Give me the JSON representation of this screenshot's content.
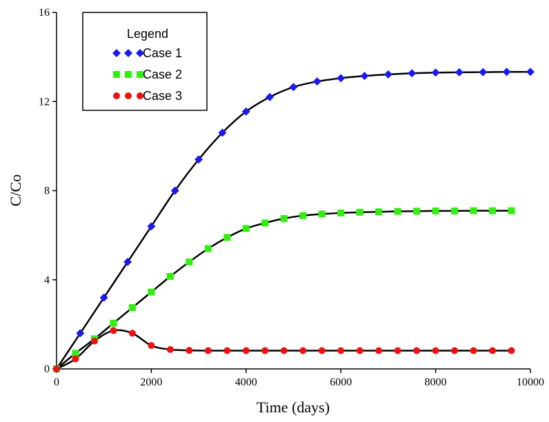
{
  "chart_data": {
    "type": "line",
    "xlabel": "Time (days)",
    "ylabel": "C/Co",
    "xlim": [
      0,
      10000
    ],
    "ylim": [
      0,
      16
    ],
    "xticks": [
      0,
      2000,
      4000,
      6000,
      8000,
      10000
    ],
    "yticks": [
      0,
      4,
      8,
      12,
      16
    ],
    "line_color": "#000000",
    "legend_title": "Legend",
    "legend_position": "upper-left",
    "series": [
      {
        "name": "Case 1",
        "color": "#1a1aee",
        "marker": "diamond",
        "x": [
          0,
          500,
          1000,
          1500,
          2000,
          2500,
          3000,
          3500,
          4000,
          4500,
          5000,
          5500,
          6000,
          6500,
          7000,
          7500,
          8000,
          8500,
          9000,
          9500,
          10000
        ],
        "values": [
          0,
          1.6,
          3.2,
          4.8,
          6.4,
          8.0,
          9.4,
          10.6,
          11.55,
          12.2,
          12.65,
          12.9,
          13.05,
          13.15,
          13.22,
          13.27,
          13.3,
          13.31,
          13.32,
          13.33,
          13.33
        ]
      },
      {
        "name": "Case 2",
        "color": "#33ee11",
        "marker": "square",
        "x": [
          0,
          400,
          800,
          1200,
          1600,
          2000,
          2400,
          2800,
          3200,
          3600,
          4000,
          4400,
          4800,
          5200,
          5600,
          6000,
          6400,
          6800,
          7200,
          7600,
          8000,
          8400,
          8800,
          9200,
          9600
        ],
        "values": [
          0,
          0.7,
          1.35,
          2.05,
          2.75,
          3.45,
          4.15,
          4.8,
          5.4,
          5.9,
          6.3,
          6.55,
          6.75,
          6.88,
          6.95,
          7.0,
          7.03,
          7.05,
          7.07,
          7.08,
          7.09,
          7.09,
          7.1,
          7.1,
          7.1
        ]
      },
      {
        "name": "Case 3",
        "color": "#ee1111",
        "marker": "circle",
        "x": [
          0,
          400,
          800,
          1200,
          1600,
          2000,
          2400,
          2800,
          3200,
          3600,
          4000,
          4400,
          4800,
          5200,
          5600,
          6000,
          6400,
          6800,
          7200,
          7600,
          8000,
          8400,
          8800,
          9200,
          9600
        ],
        "values": [
          0,
          0.45,
          1.25,
          1.72,
          1.6,
          1.05,
          0.87,
          0.83,
          0.82,
          0.82,
          0.82,
          0.82,
          0.82,
          0.82,
          0.82,
          0.82,
          0.82,
          0.82,
          0.82,
          0.82,
          0.82,
          0.82,
          0.82,
          0.82,
          0.82
        ]
      }
    ]
  }
}
